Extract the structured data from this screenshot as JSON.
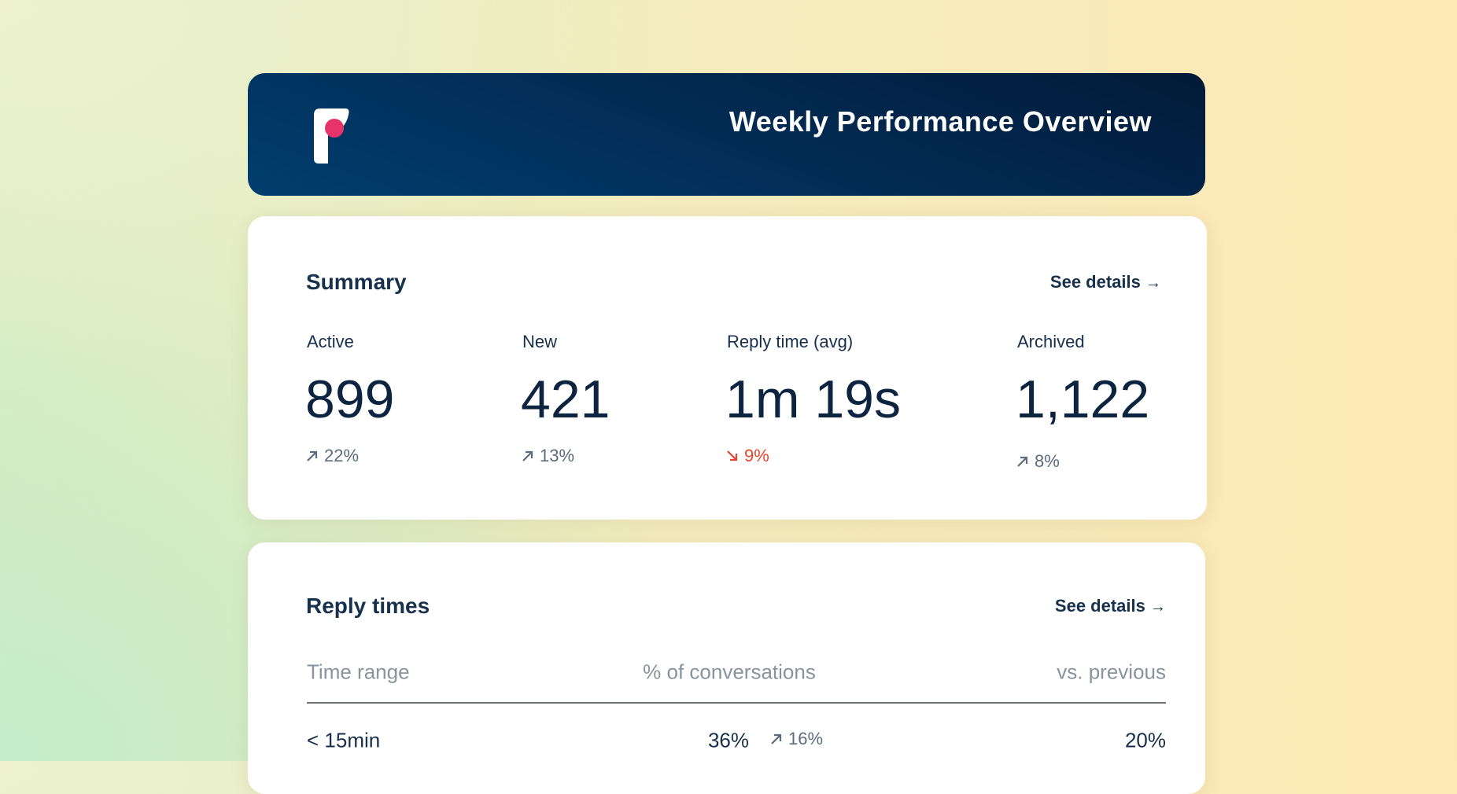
{
  "header": {
    "title": "Weekly Performance Overview"
  },
  "summary": {
    "title": "Summary",
    "link": "See details",
    "metrics": [
      {
        "label": "Active",
        "value": "899",
        "change": "22%"
      },
      {
        "label": "New",
        "value": "421",
        "change": "13%"
      },
      {
        "label": "Reply time (avg)",
        "value": "1m 19s",
        "change": "9%"
      },
      {
        "label": "Archived",
        "value": "1,122",
        "change": "8%"
      }
    ]
  },
  "reply_times": {
    "title": "Reply times",
    "link": "See details",
    "columns": [
      "Time range",
      "% of conversations",
      "vs. previous"
    ],
    "rows": [
      [
        "< 15min",
        "36%",
        "16%",
        "20%"
      ]
    ]
  }
}
